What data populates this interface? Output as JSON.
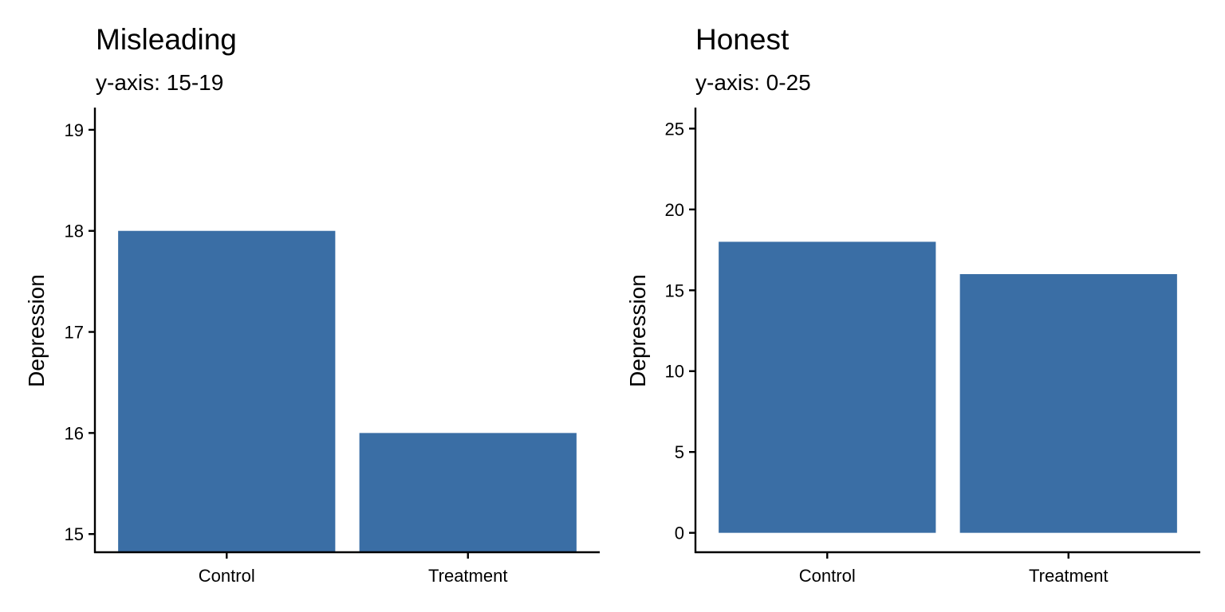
{
  "chart_data": [
    {
      "type": "bar",
      "title": "Misleading",
      "subtitle": "y-axis: 15-19",
      "xlabel": "",
      "ylabel": "Depression",
      "categories": [
        "Control",
        "Treatment"
      ],
      "values": [
        18,
        16
      ],
      "ylim": [
        14.82,
        19.22
      ],
      "bar_base": 14.82,
      "yticks": [
        15,
        16,
        17,
        18,
        19
      ],
      "color": "#3a6ea5",
      "grid": false,
      "legend": "none"
    },
    {
      "type": "bar",
      "title": "Honest",
      "subtitle": "y-axis: 0-25",
      "xlabel": "",
      "ylabel": "Depression",
      "categories": [
        "Control",
        "Treatment"
      ],
      "values": [
        18,
        16
      ],
      "ylim": [
        -1.2,
        26.3
      ],
      "bar_base": 0,
      "yticks": [
        0,
        5,
        10,
        15,
        20,
        25
      ],
      "color": "#3a6ea5",
      "grid": false,
      "legend": "none"
    }
  ]
}
